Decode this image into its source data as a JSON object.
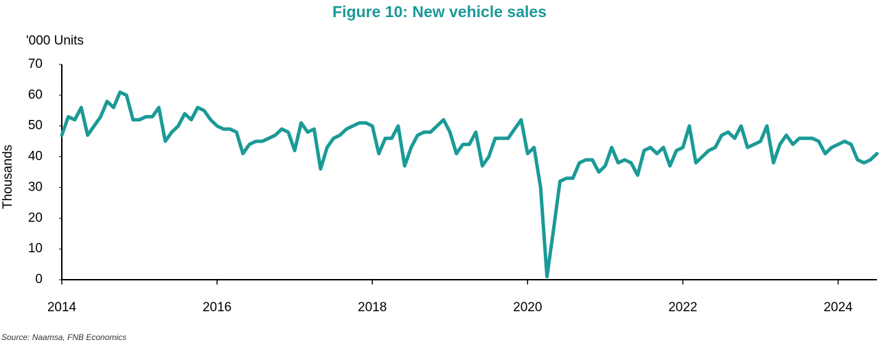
{
  "chart_data": {
    "type": "line",
    "title": "Figure 10: New vehicle sales",
    "unit_label": "'000 Units",
    "y_label": "Thousands",
    "source": "Source: Naamsa, FNB Economics",
    "x": [
      2014,
      2014.083,
      2014.167,
      2014.25,
      2014.333,
      2014.417,
      2014.5,
      2014.583,
      2014.667,
      2014.75,
      2014.833,
      2014.917,
      2015,
      2015.083,
      2015.167,
      2015.25,
      2015.333,
      2015.417,
      2015.5,
      2015.583,
      2015.667,
      2015.75,
      2015.833,
      2015.917,
      2016,
      2016.083,
      2016.167,
      2016.25,
      2016.333,
      2016.417,
      2016.5,
      2016.583,
      2016.667,
      2016.75,
      2016.833,
      2016.917,
      2017,
      2017.083,
      2017.167,
      2017.25,
      2017.333,
      2017.417,
      2017.5,
      2017.583,
      2017.667,
      2017.75,
      2017.833,
      2017.917,
      2018,
      2018.083,
      2018.167,
      2018.25,
      2018.333,
      2018.417,
      2018.5,
      2018.583,
      2018.667,
      2018.75,
      2018.833,
      2018.917,
      2019,
      2019.083,
      2019.167,
      2019.25,
      2019.333,
      2019.417,
      2019.5,
      2019.583,
      2019.667,
      2019.75,
      2019.833,
      2019.917,
      2020,
      2020.083,
      2020.167,
      2020.25,
      2020.333,
      2020.417,
      2020.5,
      2020.583,
      2020.667,
      2020.75,
      2020.833,
      2020.917,
      2021,
      2021.083,
      2021.167,
      2021.25,
      2021.333,
      2021.417,
      2021.5,
      2021.583,
      2021.667,
      2021.75,
      2021.833,
      2021.917,
      2022,
      2022.083,
      2022.167,
      2022.25,
      2022.333,
      2022.417,
      2022.5,
      2022.583,
      2022.667,
      2022.75,
      2022.833,
      2022.917,
      2023,
      2023.083,
      2023.167,
      2023.25,
      2023.333,
      2023.417,
      2023.5,
      2023.583,
      2023.667,
      2023.75,
      2023.833,
      2023.917,
      2024,
      2024.083,
      2024.167,
      2024.25,
      2024.333,
      2024.417,
      2024.5
    ],
    "series": [
      {
        "name": "New vehicle sales",
        "color": "#1b9a97",
        "values": [
          47,
          53,
          52,
          56,
          47,
          50,
          53,
          58,
          56,
          61,
          60,
          52,
          52,
          53,
          53,
          56,
          45,
          48,
          50,
          54,
          52,
          56,
          55,
          52,
          50,
          49,
          49,
          48,
          41,
          44,
          45,
          45,
          46,
          47,
          49,
          48,
          42,
          51,
          48,
          49,
          36,
          43,
          46,
          47,
          49,
          50,
          51,
          51,
          50,
          41,
          46,
          46,
          50,
          37,
          43,
          47,
          48,
          48,
          50,
          52,
          48,
          41,
          44,
          44,
          48,
          37,
          40,
          46,
          46,
          46,
          49,
          52,
          41,
          43,
          30,
          1,
          16,
          32,
          33,
          33,
          38,
          39,
          39,
          35,
          37,
          43,
          38,
          39,
          38,
          34,
          42,
          43,
          41,
          43,
          37,
          42,
          43,
          50,
          38,
          40,
          42,
          43,
          47,
          48,
          46,
          50,
          43,
          44,
          45,
          50,
          38,
          44,
          47,
          44,
          46,
          46,
          46,
          45,
          41,
          43,
          44,
          45,
          44,
          39,
          38,
          39,
          41
        ]
      }
    ],
    "xlim": [
      2014,
      2024.5
    ],
    "xticks": [
      2014,
      2016,
      2018,
      2020,
      2022,
      2024
    ],
    "ylim": [
      0,
      70
    ],
    "yticks": [
      0,
      10,
      20,
      30,
      40,
      50,
      60,
      70
    ]
  }
}
